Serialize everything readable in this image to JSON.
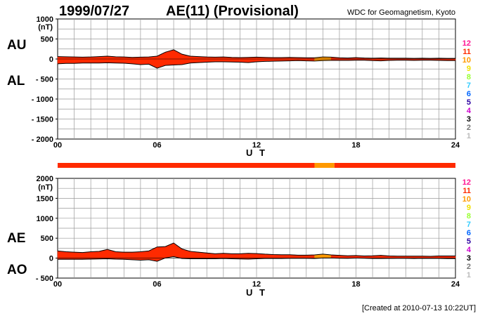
{
  "header": {
    "date": "1999/07/27",
    "title": "AE(11) (Provisional)",
    "source": "WDC for Geomagnetism, Kyoto"
  },
  "footer": {
    "created": "[Created at 2010-07-13 10:22UT]"
  },
  "legend_levels": [
    {
      "label": "12",
      "color": "#ff1493"
    },
    {
      "label": "11",
      "color": "#ff2a00"
    },
    {
      "label": "10",
      "color": "#ff9900"
    },
    {
      "label": "9",
      "color": "#f0e000"
    },
    {
      "label": "8",
      "color": "#99ff33"
    },
    {
      "label": "7",
      "color": "#33ccff"
    },
    {
      "label": "6",
      "color": "#0066ff"
    },
    {
      "label": "5",
      "color": "#2a00a0"
    },
    {
      "label": "4",
      "color": "#cc00cc"
    },
    {
      "label": "3",
      "color": "#000000"
    },
    {
      "label": "2",
      "color": "#777777"
    },
    {
      "label": "1",
      "color": "#bbbbbb"
    }
  ],
  "colors": {
    "station_11": "#ff2a00",
    "station_10": "#f2a000",
    "grid": "#999999"
  },
  "chart_data": [
    {
      "type": "area",
      "panel": "AU/AL",
      "series_labels": [
        "AU",
        "AL"
      ],
      "ylabel": "(nT)",
      "xlabel": "U T",
      "xlim": [
        0,
        24
      ],
      "ylim": [
        -2000,
        1000
      ],
      "yticks": [
        "1000",
        "500",
        "0",
        "- 500",
        "- 1000",
        "- 1500",
        "- 2000"
      ],
      "ytick_values": [
        1000,
        500,
        0,
        -500,
        -1000,
        -1500,
        -2000
      ],
      "xticks": [
        "00",
        "06",
        "12",
        "18",
        "24"
      ],
      "xtick_values": [
        0,
        6,
        12,
        18,
        24
      ],
      "x": [
        0,
        0.5,
        1,
        1.5,
        2,
        2.5,
        3,
        3.5,
        4,
        4.5,
        5,
        5.5,
        6,
        6.5,
        7,
        7.5,
        8,
        8.5,
        9,
        9.5,
        10,
        10.5,
        11,
        11.5,
        12,
        12.5,
        13,
        13.5,
        14,
        14.5,
        15,
        15.5,
        16,
        16.5,
        17,
        17.5,
        18,
        18.5,
        19,
        19.5,
        20,
        20.5,
        21,
        21.5,
        22,
        22.5,
        23,
        23.5,
        24
      ],
      "AU": [
        60,
        55,
        50,
        45,
        50,
        60,
        70,
        55,
        50,
        40,
        45,
        50,
        70,
        170,
        230,
        120,
        70,
        60,
        50,
        45,
        50,
        40,
        35,
        40,
        45,
        40,
        35,
        35,
        40,
        35,
        30,
        30,
        50,
        45,
        30,
        25,
        35,
        25,
        20,
        25,
        20,
        20,
        20,
        15,
        20,
        15,
        20,
        15,
        15
      ],
      "AL": [
        -120,
        -110,
        -110,
        -100,
        -100,
        -100,
        -95,
        -100,
        -105,
        -120,
        -140,
        -130,
        -230,
        -160,
        -150,
        -140,
        -100,
        -90,
        -80,
        -70,
        -70,
        -75,
        -80,
        -90,
        -70,
        -60,
        -55,
        -50,
        -45,
        -40,
        -45,
        -50,
        -40,
        -35,
        -35,
        -35,
        -30,
        -30,
        -40,
        -45,
        -35,
        -30,
        -30,
        -35,
        -30,
        -30,
        -35,
        -40,
        -40
      ]
    },
    {
      "type": "area",
      "panel": "AE/AO",
      "series_labels": [
        "AE",
        "AO"
      ],
      "ylabel": "(nT)",
      "xlabel": "U T",
      "xlim": [
        0,
        24
      ],
      "ylim": [
        -500,
        2000
      ],
      "yticks": [
        "2000",
        "1500",
        "1000",
        "500",
        "0",
        "- 500"
      ],
      "ytick_values": [
        2000,
        1500,
        1000,
        500,
        0,
        -500
      ],
      "xticks": [
        "00",
        "06",
        "12",
        "18",
        "24"
      ],
      "xtick_values": [
        0,
        6,
        12,
        18,
        24
      ],
      "x": [
        0,
        0.5,
        1,
        1.5,
        2,
        2.5,
        3,
        3.5,
        4,
        4.5,
        5,
        5.5,
        6,
        6.5,
        7,
        7.5,
        8,
        8.5,
        9,
        9.5,
        10,
        10.5,
        11,
        11.5,
        12,
        12.5,
        13,
        13.5,
        14,
        14.5,
        15,
        15.5,
        16,
        16.5,
        17,
        17.5,
        18,
        18.5,
        19,
        19.5,
        20,
        20.5,
        21,
        21.5,
        22,
        22.5,
        23,
        23.5,
        24
      ],
      "AE": [
        180,
        160,
        150,
        140,
        160,
        170,
        220,
        160,
        150,
        150,
        160,
        180,
        280,
        290,
        380,
        230,
        170,
        150,
        130,
        110,
        120,
        110,
        110,
        120,
        115,
        100,
        90,
        85,
        85,
        75,
        75,
        80,
        100,
        80,
        70,
        60,
        65,
        55,
        60,
        70,
        55,
        50,
        50,
        50,
        50,
        45,
        55,
        55,
        55
      ],
      "AO": [
        -30,
        -30,
        -30,
        -30,
        -25,
        -20,
        -15,
        -25,
        -30,
        -40,
        -50,
        -40,
        -80,
        5,
        40,
        -10,
        -15,
        -15,
        -15,
        -15,
        -10,
        -15,
        -20,
        -25,
        -15,
        -10,
        -10,
        -10,
        -5,
        -5,
        -5,
        -10,
        5,
        5,
        -2,
        -5,
        2,
        -2,
        -10,
        -10,
        -8,
        -5,
        -5,
        -10,
        -5,
        -8,
        -8,
        -12,
        -12
      ]
    }
  ],
  "station_count_segments": [
    {
      "from": 0,
      "to": 15.5,
      "level": "11"
    },
    {
      "from": 15.5,
      "to": 16.7,
      "level": "10"
    },
    {
      "from": 16.7,
      "to": 24,
      "level": "11"
    }
  ]
}
